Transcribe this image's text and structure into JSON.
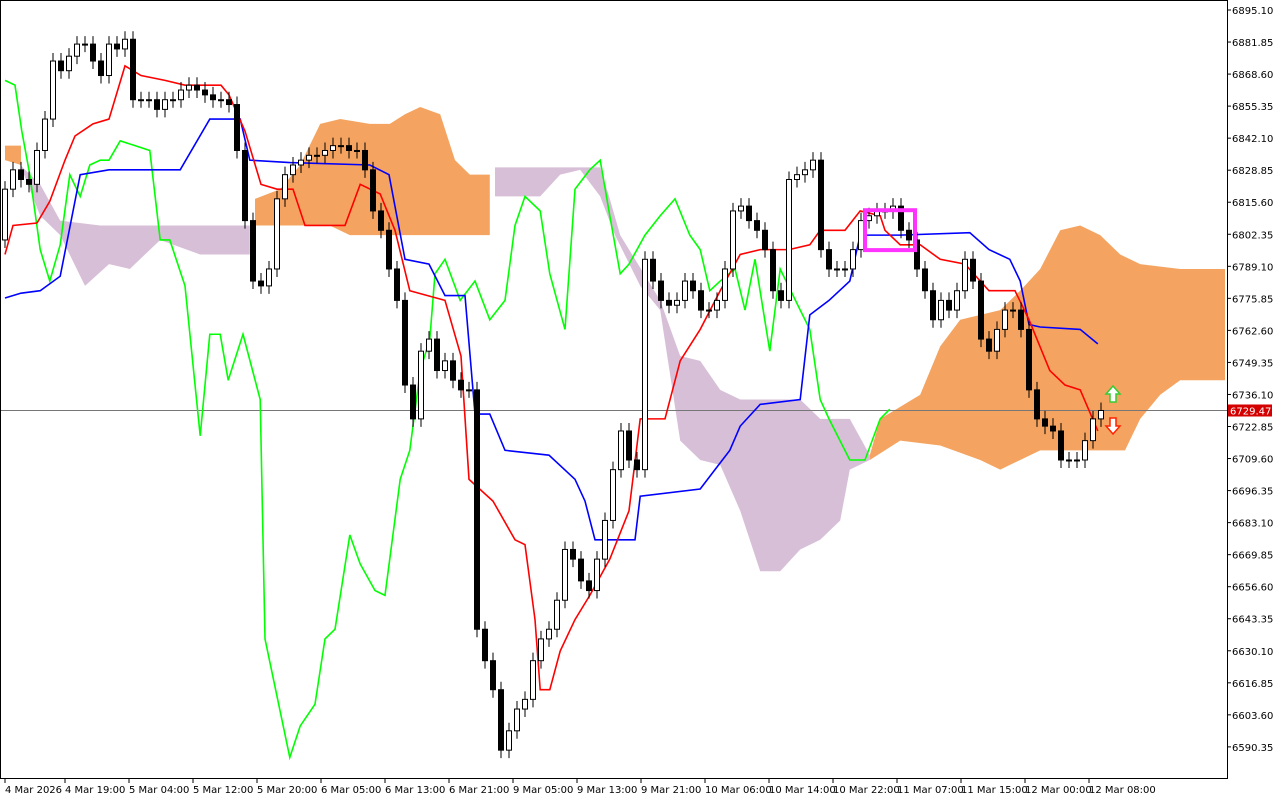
{
  "chart_data": {
    "type": "candlestick",
    "indicator": "ichimoku",
    "ylim": [
      6583.0,
      6898.0
    ],
    "y_ticks": [
      "6895.10",
      "6881.85",
      "6868.60",
      "6855.35",
      "6842.10",
      "6828.85",
      "6815.60",
      "6802.35",
      "6789.10",
      "6775.85",
      "6762.60",
      "6749.35",
      "6736.10",
      "6722.85",
      "6709.60",
      "6696.35",
      "6683.10",
      "6669.85",
      "6656.60",
      "6643.35",
      "6630.10",
      "6616.85",
      "6603.60",
      "6590.35"
    ],
    "x_ticks": [
      "4 Mar 2026",
      "4 Mar 19:00",
      "5 Mar 04:00",
      "5 Mar 12:00",
      "5 Mar 20:00",
      "6 Mar 05:00",
      "6 Mar 13:00",
      "6 Mar 21:00",
      "9 Mar 05:00",
      "9 Mar 13:00",
      "9 Mar 21:00",
      "10 Mar 06:00",
      "10 Mar 14:00",
      "10 Mar 22:00",
      "11 Mar 07:00",
      "11 Mar 15:00",
      "12 Mar 00:00",
      "12 Mar 08:00"
    ],
    "current_price": "6729.47",
    "current_price_value": 6729.47,
    "first_open": 6800,
    "closes": [
      6821,
      6829,
      6825,
      6823,
      6837,
      6850,
      6874,
      6870,
      6876,
      6881,
      6881,
      6874,
      6868,
      6881,
      6879,
      6883,
      6858,
      6858,
      6858,
      6854,
      6858,
      6858,
      6862,
      6864,
      6862,
      6860,
      6858,
      6858,
      6856,
      6837,
      6808,
      6783,
      6781,
      6788,
      6817,
      6827,
      6831,
      6833,
      6835,
      6835,
      6837,
      6839,
      6839,
      6837,
      6837,
      6829,
      6812,
      6804,
      6788,
      6775,
      6740,
      6726,
      6754,
      6759,
      6746,
      6750,
      6742,
      6738,
      6738,
      6639,
      6626,
      6614,
      6589,
      6597,
      6606,
      6610,
      6626,
      6635,
      6639,
      6651,
      6672,
      6668,
      6659,
      6655,
      6668,
      6684,
      6705,
      6721,
      6709,
      6705,
      6792,
      6783,
      6775,
      6773,
      6775,
      6783,
      6779,
      6771,
      6771,
      6775,
      6788,
      6812,
      6814,
      6808,
      6804,
      6796,
      6779,
      6775,
      6825,
      6827,
      6829,
      6833,
      6796,
      6788,
      6788,
      6788,
      6796,
      6808,
      6810,
      6812,
      6812,
      6814,
      6804,
      6800,
      6788,
      6779,
      6767,
      6775,
      6771,
      6779,
      6792,
      6783,
      6759,
      6754,
      6763,
      6771,
      6771,
      6763,
      6738,
      6726,
      6723,
      6721,
      6709,
      6709,
      6709,
      6717,
      6726,
      6729.47
    ],
    "tenkan": [
      [
        0,
        6794
      ],
      [
        1,
        6806
      ],
      [
        4,
        6807
      ],
      [
        5.6,
        6816
      ],
      [
        7.5,
        6833
      ],
      [
        8.75,
        6843
      ],
      [
        11,
        6848
      ],
      [
        13,
        6850
      ],
      [
        15,
        6872
      ],
      [
        17,
        6868
      ],
      [
        20,
        6866
      ],
      [
        22.5,
        6864
      ],
      [
        27,
        6864
      ],
      [
        28,
        6860
      ],
      [
        30,
        6845
      ],
      [
        32,
        6823
      ],
      [
        34,
        6821
      ],
      [
        36,
        6821
      ],
      [
        37.5,
        6806
      ],
      [
        42.5,
        6806
      ],
      [
        44.4,
        6823
      ],
      [
        46.9,
        6819
      ],
      [
        48.75,
        6804
      ],
      [
        50.6,
        6779
      ],
      [
        55,
        6775
      ],
      [
        57,
        6752
      ],
      [
        58,
        6701
      ],
      [
        61,
        6692
      ],
      [
        63.75,
        6676
      ],
      [
        65,
        6674
      ],
      [
        66.25,
        6643
      ],
      [
        66.9,
        6614
      ],
      [
        68.1,
        6614
      ],
      [
        69.4,
        6630
      ],
      [
        71.25,
        6643
      ],
      [
        73.1,
        6653
      ],
      [
        75.6,
        6668
      ],
      [
        78,
        6688
      ],
      [
        79.4,
        6726
      ],
      [
        82.5,
        6726
      ],
      [
        84.4,
        6750
      ],
      [
        86.9,
        6763
      ],
      [
        89.4,
        6779
      ],
      [
        91.9,
        6794
      ],
      [
        94.4,
        6796
      ],
      [
        98,
        6796
      ],
      [
        100.6,
        6798
      ],
      [
        101.9,
        6804
      ],
      [
        105,
        6804
      ],
      [
        106.9,
        6812
      ],
      [
        109.4,
        6810
      ],
      [
        110,
        6804
      ],
      [
        111.9,
        6798
      ],
      [
        114.4,
        6798
      ],
      [
        116.9,
        6792
      ],
      [
        120,
        6790
      ],
      [
        123,
        6779
      ],
      [
        126.25,
        6779
      ],
      [
        128,
        6767
      ],
      [
        130.6,
        6746
      ],
      [
        132.5,
        6740
      ],
      [
        134.4,
        6738
      ],
      [
        136.6,
        6721
      ]
    ],
    "kijun": [
      [
        0,
        6776
      ],
      [
        2,
        6778
      ],
      [
        4.4,
        6779
      ],
      [
        6.9,
        6785
      ],
      [
        9.4,
        6827
      ],
      [
        13,
        6829
      ],
      [
        21.9,
        6829
      ],
      [
        25.6,
        6850
      ],
      [
        29.4,
        6850
      ],
      [
        30.6,
        6833
      ],
      [
        35.6,
        6832
      ],
      [
        45.6,
        6831
      ],
      [
        48,
        6827
      ],
      [
        50,
        6792
      ],
      [
        53,
        6790
      ],
      [
        55,
        6777
      ],
      [
        57.5,
        6777
      ],
      [
        58.75,
        6728
      ],
      [
        60.6,
        6728
      ],
      [
        62.5,
        6713
      ],
      [
        68,
        6711
      ],
      [
        71.25,
        6701
      ],
      [
        72.5,
        6692
      ],
      [
        73.75,
        6676
      ],
      [
        78.75,
        6676
      ],
      [
        79.4,
        6694
      ],
      [
        86.9,
        6697
      ],
      [
        88.75,
        6705
      ],
      [
        90.6,
        6713
      ],
      [
        91.9,
        6723
      ],
      [
        94.4,
        6732
      ],
      [
        99.4,
        6734
      ],
      [
        100.6,
        6769
      ],
      [
        103,
        6775
      ],
      [
        105.6,
        6783
      ],
      [
        106.9,
        6802
      ],
      [
        111.9,
        6802
      ],
      [
        120.6,
        6803
      ],
      [
        123,
        6796
      ],
      [
        125.6,
        6792
      ],
      [
        126.9,
        6783
      ],
      [
        128,
        6765
      ],
      [
        129.4,
        6764
      ],
      [
        134.4,
        6763
      ],
      [
        136.6,
        6757
      ]
    ],
    "chikou": [
      [
        0,
        6866
      ],
      [
        1.25,
        6864
      ],
      [
        2.1,
        6845
      ],
      [
        3.1,
        6827
      ],
      [
        4.4,
        6796
      ],
      [
        5.6,
        6783
      ],
      [
        6.9,
        6798
      ],
      [
        8.1,
        6827
      ],
      [
        9.4,
        6818
      ],
      [
        10.6,
        6831
      ],
      [
        11.9,
        6833
      ],
      [
        13,
        6833
      ],
      [
        14.4,
        6841
      ],
      [
        16.25,
        6839
      ],
      [
        18.1,
        6837
      ],
      [
        19.4,
        6800
      ],
      [
        20.6,
        6800
      ],
      [
        22.5,
        6781
      ],
      [
        24.4,
        6719
      ],
      [
        25.6,
        6761
      ],
      [
        26.9,
        6761
      ],
      [
        27.9,
        6742
      ],
      [
        29.75,
        6761
      ],
      [
        31.9,
        6734
      ],
      [
        32.5,
        6635
      ],
      [
        35.6,
        6586
      ],
      [
        36.9,
        6599
      ],
      [
        38.75,
        6608
      ],
      [
        40,
        6635
      ],
      [
        41.25,
        6639
      ],
      [
        43.1,
        6678
      ],
      [
        44.4,
        6666
      ],
      [
        46.25,
        6655
      ],
      [
        47.5,
        6653
      ],
      [
        49.4,
        6701
      ],
      [
        50.6,
        6713
      ],
      [
        51.9,
        6746
      ],
      [
        53.1,
        6759
      ],
      [
        53.75,
        6786
      ],
      [
        55,
        6792
      ],
      [
        56.9,
        6775
      ],
      [
        58.75,
        6783
      ],
      [
        60.6,
        6767
      ],
      [
        62.5,
        6775
      ],
      [
        63.75,
        6806
      ],
      [
        65,
        6818
      ],
      [
        66.9,
        6812
      ],
      [
        68.1,
        6786
      ],
      [
        70,
        6763
      ],
      [
        71.25,
        6821
      ],
      [
        73.1,
        6829
      ],
      [
        74.4,
        6833
      ],
      [
        75.6,
        6810
      ],
      [
        76.9,
        6786
      ],
      [
        78,
        6790
      ],
      [
        80,
        6802
      ],
      [
        81.9,
        6810
      ],
      [
        83.75,
        6817
      ],
      [
        85.6,
        6802
      ],
      [
        86.9,
        6796
      ],
      [
        88.1,
        6779
      ],
      [
        89.4,
        6783
      ],
      [
        91.25,
        6788
      ],
      [
        92.5,
        6771
      ],
      [
        93.75,
        6792
      ],
      [
        95.6,
        6754
      ],
      [
        96.9,
        6788
      ],
      [
        99.4,
        6771
      ],
      [
        100.6,
        6763
      ],
      [
        101.9,
        6734
      ],
      [
        103,
        6726
      ],
      [
        105.6,
        6709
      ],
      [
        107.5,
        6709
      ],
      [
        109.4,
        6726
      ],
      [
        110.6,
        6730
      ]
    ],
    "cloud": [
      {
        "trend": "bullish",
        "upper": [
          [
            0,
            6839
          ],
          [
            2,
            6839
          ]
        ],
        "lower": [
          [
            0,
            6833
          ],
          [
            2,
            6831
          ]
        ]
      },
      {
        "trend": "bearish",
        "upper": [
          [
            1.9,
            6831
          ],
          [
            4.4,
            6823
          ],
          [
            6.9,
            6808
          ],
          [
            11.9,
            6806
          ],
          [
            19.4,
            6806
          ],
          [
            30.6,
            6806
          ]
        ],
        "lower": [
          [
            1.9,
            6831
          ],
          [
            4.4,
            6810
          ],
          [
            6.9,
            6802
          ],
          [
            10,
            6781
          ],
          [
            13,
            6790
          ],
          [
            15.6,
            6788
          ],
          [
            19.4,
            6800
          ],
          [
            24.4,
            6794
          ],
          [
            30.6,
            6794
          ]
        ]
      },
      {
        "trend": "bullish",
        "upper": [
          [
            31.25,
            6817
          ],
          [
            34.4,
            6821
          ],
          [
            36.9,
            6831
          ],
          [
            39.4,
            6848
          ],
          [
            41.9,
            6850
          ],
          [
            45.6,
            6848
          ],
          [
            48.1,
            6848
          ],
          [
            50,
            6852
          ],
          [
            51.9,
            6855
          ],
          [
            54.4,
            6852
          ],
          [
            56.25,
            6833
          ],
          [
            58.1,
            6827
          ],
          [
            60.6,
            6827
          ]
        ],
        "lower": [
          [
            31.25,
            6806
          ],
          [
            40.6,
            6806
          ],
          [
            43.1,
            6802
          ],
          [
            60.6,
            6802
          ]
        ]
      },
      {
        "trend": "bearish",
        "upper": [
          [
            61.25,
            6830
          ],
          [
            74.4,
            6830
          ],
          [
            75.6,
            6817
          ],
          [
            76.9,
            6802
          ],
          [
            81.9,
            6775
          ],
          [
            84.4,
            6752
          ],
          [
            86.9,
            6750
          ],
          [
            89.4,
            6738
          ],
          [
            91.9,
            6734
          ],
          [
            99.4,
            6734
          ],
          [
            101.9,
            6726
          ],
          [
            105.6,
            6726
          ],
          [
            108.1,
            6711
          ]
        ],
        "lower": [
          [
            61.25,
            6818
          ],
          [
            66.9,
            6818
          ],
          [
            69.4,
            6827
          ],
          [
            71.9,
            6829
          ],
          [
            74.4,
            6818
          ],
          [
            76.25,
            6802
          ],
          [
            79.4,
            6781
          ],
          [
            81.9,
            6771
          ],
          [
            84.4,
            6717
          ],
          [
            86.9,
            6709
          ],
          [
            89.4,
            6707
          ],
          [
            91.9,
            6688
          ],
          [
            94.4,
            6663
          ],
          [
            96.9,
            6663
          ],
          [
            99.4,
            6672
          ],
          [
            101.9,
            6676
          ],
          [
            104.4,
            6684
          ],
          [
            105.6,
            6705
          ],
          [
            108.1,
            6709
          ]
        ]
      },
      {
        "trend": "bullish",
        "upper": [
          [
            108.1,
            6711
          ],
          [
            109.4,
            6726
          ],
          [
            114.4,
            6736
          ],
          [
            116.9,
            6756
          ],
          [
            119.4,
            6767
          ],
          [
            124.4,
            6771
          ],
          [
            126.9,
            6779
          ],
          [
            129.4,
            6788
          ],
          [
            131.9,
            6804
          ],
          [
            134.4,
            6806
          ],
          [
            136.9,
            6802
          ],
          [
            139.4,
            6794
          ],
          [
            141.9,
            6790
          ],
          [
            146.9,
            6788
          ],
          [
            152.5,
            6788
          ]
        ],
        "lower": [
          [
            108.1,
            6709
          ],
          [
            111.9,
            6717
          ],
          [
            116.9,
            6715
          ],
          [
            121.9,
            6709
          ],
          [
            124.4,
            6705
          ],
          [
            126.9,
            6709
          ],
          [
            129.4,
            6713
          ],
          [
            140,
            6713
          ],
          [
            141.9,
            6726
          ],
          [
            144.4,
            6736
          ],
          [
            146.9,
            6742
          ],
          [
            152.5,
            6742
          ]
        ]
      }
    ],
    "highlight_box": {
      "bars": [
        107.5,
        113.75
      ],
      "prices": [
        6795.8,
        6812.3
      ]
    },
    "colors": {
      "tenkan": "#ff0000",
      "kijun": "#0000ff",
      "chikou": "#00ff00",
      "cloud_bullish": "#f4a460",
      "cloud_bearish": "#d8bfd8",
      "highlight": "#ff33ff",
      "price_label": "#d40000",
      "up_arrow": "#33cc33",
      "down_arrow": "#ff2200"
    }
  }
}
